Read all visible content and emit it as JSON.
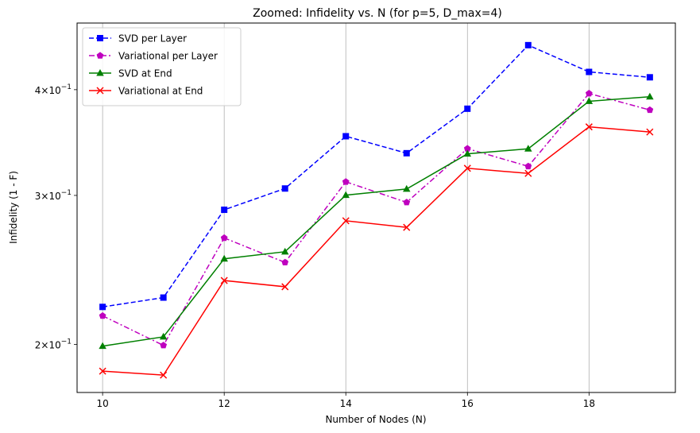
{
  "chart_data": {
    "type": "line",
    "title": "Zoomed: Infidelity vs. N (for p=5, D_max=4)",
    "xlabel": "Number of Nodes (N)",
    "ylabel": "Infidelity (1 - F)",
    "x": [
      10,
      11,
      12,
      13,
      14,
      15,
      16,
      17,
      18,
      19
    ],
    "xlim": [
      9.58,
      19.42
    ],
    "ylim": [
      0.1755,
      0.4795
    ],
    "yscale": "log",
    "xticks": [
      10,
      12,
      14,
      16,
      18
    ],
    "xtick_labels": [
      "10",
      "12",
      "14",
      "16",
      "18"
    ],
    "yticks": [
      0.2,
      0.3,
      0.4
    ],
    "ytick_labels": [
      {
        "mantissa": "2",
        "base": "10",
        "exp": "−1"
      },
      {
        "mantissa": "3",
        "base": "10",
        "exp": "−1"
      },
      {
        "mantissa": "4",
        "base": "10",
        "exp": "−1"
      }
    ],
    "grid": "x-major",
    "legend_position": "upper-left",
    "series": [
      {
        "name": "SVD per Layer",
        "color": "#0000ff",
        "linestyle": "dashed",
        "marker": "square",
        "values": [
          0.2215,
          0.2272,
          0.2885,
          0.3057,
          0.3524,
          0.3365,
          0.3798,
          0.4515,
          0.4198,
          0.4137
        ]
      },
      {
        "name": "Variational per Layer",
        "color": "#bf00bf",
        "linestyle": "dashdot",
        "marker": "pentagon",
        "values": [
          0.2162,
          0.1995,
          0.2672,
          0.25,
          0.3113,
          0.2944,
          0.3407,
          0.3247,
          0.3959,
          0.3785
        ]
      },
      {
        "name": "SVD at End",
        "color": "#008000",
        "linestyle": "solid",
        "marker": "triangle",
        "values": [
          0.1991,
          0.2042,
          0.2525,
          0.2574,
          0.3002,
          0.3053,
          0.3359,
          0.3406,
          0.3876,
          0.3924
        ]
      },
      {
        "name": "Variational at End",
        "color": "#ff0000",
        "linestyle": "solid",
        "marker": "x",
        "values": [
          0.186,
          0.184,
          0.238,
          0.234,
          0.28,
          0.275,
          0.323,
          0.3185,
          0.3615,
          0.3565
        ]
      }
    ]
  }
}
